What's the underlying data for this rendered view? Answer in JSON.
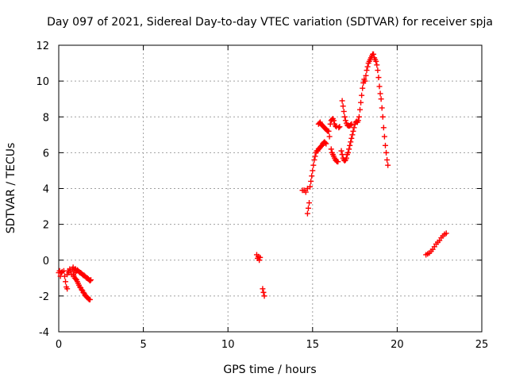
{
  "chart_data": {
    "type": "scatter",
    "title": "Day 097 of 2021, Sidereal Day-to-day VTEC variation (SDTVAR) for receiver spja",
    "xlabel": "GPS time / hours",
    "ylabel": "SDTVAR / TECUs",
    "xlim": [
      0,
      25
    ],
    "ylim": [
      -4,
      12
    ],
    "xticks": [
      0,
      5,
      10,
      15,
      20,
      25
    ],
    "yticks": [
      -4,
      -2,
      0,
      2,
      4,
      6,
      8,
      10,
      12
    ],
    "xtick_labels": [
      "0",
      "5",
      "10",
      "15",
      "20",
      "25"
    ],
    "ytick_labels": [
      "-4",
      "-2",
      "0",
      "2",
      "4",
      "6",
      "8",
      "10",
      "12"
    ],
    "grid": true,
    "marker": "+",
    "marker_color": "#ff0000",
    "series": [
      {
        "name": "SDTVAR",
        "points": [
          [
            0.0,
            -0.7
          ],
          [
            0.05,
            -0.6
          ],
          [
            0.1,
            -0.9
          ],
          [
            0.15,
            -0.7
          ],
          [
            0.2,
            -0.65
          ],
          [
            0.3,
            -0.6
          ],
          [
            0.35,
            -0.9
          ],
          [
            0.4,
            -1.2
          ],
          [
            0.45,
            -1.5
          ],
          [
            0.5,
            -1.6
          ],
          [
            0.5,
            -0.8
          ],
          [
            0.55,
            -0.6
          ],
          [
            0.6,
            -0.7
          ],
          [
            0.65,
            -0.5
          ],
          [
            0.7,
            -0.6
          ],
          [
            0.75,
            -0.8
          ],
          [
            0.8,
            -0.5
          ],
          [
            0.85,
            -0.4
          ],
          [
            0.9,
            -0.6
          ],
          [
            0.95,
            -0.5
          ],
          [
            1.0,
            -0.5
          ],
          [
            1.0,
            -0.7
          ],
          [
            1.05,
            -0.6
          ],
          [
            1.1,
            -0.55
          ],
          [
            1.15,
            -0.6
          ],
          [
            1.2,
            -0.65
          ],
          [
            1.25,
            -0.7
          ],
          [
            1.3,
            -0.7
          ],
          [
            1.35,
            -0.75
          ],
          [
            1.4,
            -0.8
          ],
          [
            1.45,
            -0.85
          ],
          [
            1.5,
            -0.85
          ],
          [
            1.55,
            -0.9
          ],
          [
            1.6,
            -0.95
          ],
          [
            1.65,
            -1.0
          ],
          [
            1.7,
            -1.0
          ],
          [
            1.75,
            -1.05
          ],
          [
            1.8,
            -1.1
          ],
          [
            1.85,
            -1.15
          ],
          [
            1.9,
            -1.1
          ],
          [
            0.85,
            -0.8
          ],
          [
            0.9,
            -0.9
          ],
          [
            0.95,
            -1.0
          ],
          [
            1.0,
            -1.05
          ],
          [
            1.05,
            -1.1
          ],
          [
            1.1,
            -1.2
          ],
          [
            1.15,
            -1.3
          ],
          [
            1.2,
            -1.4
          ],
          [
            1.25,
            -1.5
          ],
          [
            1.3,
            -1.55
          ],
          [
            1.35,
            -1.65
          ],
          [
            1.4,
            -1.7
          ],
          [
            1.45,
            -1.8
          ],
          [
            1.5,
            -1.85
          ],
          [
            1.55,
            -1.95
          ],
          [
            1.6,
            -2.0
          ],
          [
            1.65,
            -2.05
          ],
          [
            1.7,
            -2.1
          ],
          [
            1.75,
            -2.15
          ],
          [
            1.8,
            -2.2
          ],
          [
            1.85,
            -2.2
          ],
          [
            11.7,
            0.3
          ],
          [
            11.75,
            0.1
          ],
          [
            11.8,
            0.2
          ],
          [
            11.85,
            0.0
          ],
          [
            11.9,
            0.15
          ],
          [
            12.05,
            -1.6
          ],
          [
            12.1,
            -1.8
          ],
          [
            12.15,
            -2.0
          ],
          [
            14.4,
            3.9
          ],
          [
            14.5,
            3.9
          ],
          [
            14.6,
            3.8
          ],
          [
            14.7,
            4.0
          ],
          [
            14.7,
            2.6
          ],
          [
            14.75,
            2.9
          ],
          [
            14.8,
            3.2
          ],
          [
            14.85,
            4.1
          ],
          [
            14.9,
            4.4
          ],
          [
            14.95,
            4.7
          ],
          [
            15.0,
            5.0
          ],
          [
            15.05,
            5.3
          ],
          [
            15.1,
            5.6
          ],
          [
            15.15,
            5.8
          ],
          [
            15.2,
            6.0
          ],
          [
            15.25,
            6.1
          ],
          [
            15.3,
            6.1
          ],
          [
            15.35,
            6.2
          ],
          [
            15.4,
            6.25
          ],
          [
            15.45,
            6.3
          ],
          [
            15.5,
            6.35
          ],
          [
            15.55,
            6.4
          ],
          [
            15.6,
            6.5
          ],
          [
            15.65,
            6.55
          ],
          [
            15.7,
            6.6
          ],
          [
            15.75,
            6.55
          ],
          [
            15.8,
            6.5
          ],
          [
            15.35,
            7.6
          ],
          [
            15.4,
            7.65
          ],
          [
            15.45,
            7.7
          ],
          [
            15.5,
            7.6
          ],
          [
            15.55,
            7.55
          ],
          [
            15.6,
            7.5
          ],
          [
            15.65,
            7.45
          ],
          [
            15.7,
            7.4
          ],
          [
            15.75,
            7.35
          ],
          [
            15.8,
            7.3
          ],
          [
            15.85,
            7.25
          ],
          [
            15.9,
            7.2
          ],
          [
            15.95,
            7.2
          ],
          [
            16.0,
            6.9
          ],
          [
            16.05,
            7.6
          ],
          [
            16.1,
            7.8
          ],
          [
            16.15,
            7.85
          ],
          [
            16.2,
            7.9
          ],
          [
            16.25,
            7.8
          ],
          [
            16.3,
            7.6
          ],
          [
            16.35,
            7.5
          ],
          [
            16.4,
            7.45
          ],
          [
            16.1,
            6.2
          ],
          [
            16.15,
            6.0
          ],
          [
            16.2,
            5.9
          ],
          [
            16.25,
            5.8
          ],
          [
            16.3,
            5.7
          ],
          [
            16.35,
            5.6
          ],
          [
            16.4,
            5.55
          ],
          [
            16.45,
            5.5
          ],
          [
            16.5,
            5.5
          ],
          [
            16.55,
            7.4
          ],
          [
            16.6,
            7.45
          ],
          [
            16.7,
            6.1
          ],
          [
            16.75,
            5.9
          ],
          [
            16.8,
            5.7
          ],
          [
            16.85,
            5.6
          ],
          [
            16.9,
            5.55
          ],
          [
            16.95,
            5.6
          ],
          [
            17.0,
            5.7
          ],
          [
            17.05,
            5.9
          ],
          [
            17.1,
            6.0
          ],
          [
            17.15,
            6.2
          ],
          [
            17.2,
            6.4
          ],
          [
            17.25,
            6.6
          ],
          [
            17.3,
            6.8
          ],
          [
            17.35,
            7.0
          ],
          [
            17.4,
            7.2
          ],
          [
            17.45,
            7.4
          ],
          [
            17.5,
            7.6
          ],
          [
            17.55,
            7.7
          ],
          [
            17.6,
            7.75
          ],
          [
            17.65,
            7.7
          ],
          [
            17.7,
            7.8
          ],
          [
            16.75,
            8.9
          ],
          [
            16.8,
            8.6
          ],
          [
            16.85,
            8.3
          ],
          [
            16.9,
            8.0
          ],
          [
            16.95,
            7.8
          ],
          [
            17.0,
            7.65
          ],
          [
            17.05,
            7.55
          ],
          [
            17.1,
            7.5
          ],
          [
            17.15,
            7.5
          ],
          [
            17.2,
            7.5
          ],
          [
            17.25,
            7.55
          ],
          [
            17.3,
            7.6
          ],
          [
            17.75,
            8.0
          ],
          [
            17.8,
            8.4
          ],
          [
            17.85,
            8.8
          ],
          [
            17.9,
            9.2
          ],
          [
            17.95,
            9.6
          ],
          [
            18.0,
            9.9
          ],
          [
            18.05,
            10.1
          ],
          [
            18.1,
            10.0
          ],
          [
            18.15,
            10.3
          ],
          [
            18.2,
            10.6
          ],
          [
            18.25,
            10.8
          ],
          [
            18.3,
            11.0
          ],
          [
            18.35,
            11.1
          ],
          [
            18.4,
            11.2
          ],
          [
            18.45,
            11.3
          ],
          [
            18.5,
            11.4
          ],
          [
            18.55,
            11.5
          ],
          [
            18.6,
            11.5
          ],
          [
            18.65,
            11.3
          ],
          [
            18.7,
            11.2
          ],
          [
            18.75,
            11.1
          ],
          [
            18.8,
            10.9
          ],
          [
            18.85,
            10.6
          ],
          [
            18.9,
            10.2
          ],
          [
            18.95,
            9.7
          ],
          [
            19.0,
            9.3
          ],
          [
            19.05,
            9.0
          ],
          [
            19.1,
            8.5
          ],
          [
            19.15,
            8.0
          ],
          [
            19.2,
            7.4
          ],
          [
            19.25,
            6.9
          ],
          [
            19.3,
            6.4
          ],
          [
            19.35,
            6.0
          ],
          [
            19.4,
            5.6
          ],
          [
            19.45,
            5.3
          ],
          [
            21.7,
            0.3
          ],
          [
            21.8,
            0.35
          ],
          [
            21.9,
            0.4
          ],
          [
            22.0,
            0.5
          ],
          [
            22.1,
            0.6
          ],
          [
            22.2,
            0.75
          ],
          [
            22.3,
            0.9
          ],
          [
            22.4,
            1.0
          ],
          [
            22.5,
            1.1
          ],
          [
            22.6,
            1.25
          ],
          [
            22.7,
            1.35
          ],
          [
            22.8,
            1.45
          ],
          [
            22.9,
            1.5
          ]
        ]
      }
    ]
  }
}
